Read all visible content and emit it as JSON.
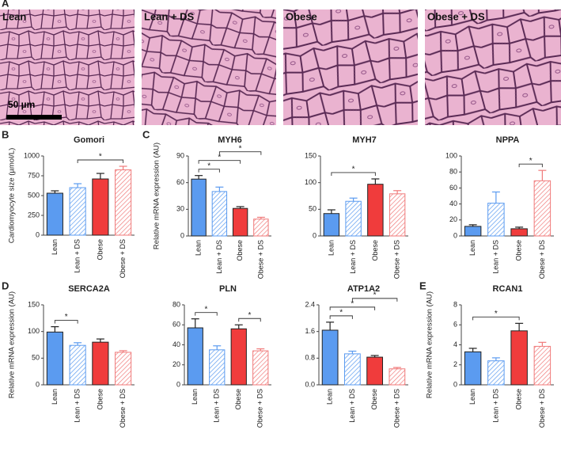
{
  "panel_letters": [
    "A",
    "B",
    "C",
    "D",
    "E"
  ],
  "histology": {
    "labels": [
      "Lean",
      "Lean + DS",
      "Obese",
      "Obese + DS"
    ],
    "scale_bar": "50 µm"
  },
  "chart_data": [
    {
      "type": "bar",
      "title": "Gomori",
      "y_label": "Cardiomyocyte size (µmol/L)",
      "categories": [
        "Lean",
        "Lean + DS",
        "Obese",
        "Obese + DS"
      ],
      "values": [
        530,
        600,
        710,
        825
      ],
      "errors": [
        30,
        50,
        70,
        45
      ],
      "colors": [
        "#5b9bf0",
        "#5b9bf0",
        "#f03c3c",
        "#f07a7a"
      ],
      "hatched": [
        false,
        true,
        false,
        true
      ],
      "ylim": [
        0,
        1000
      ],
      "yticks": [
        0,
        250,
        500,
        750,
        1000
      ],
      "significance": [
        {
          "pair": [
            1,
            3
          ],
          "label": "*"
        }
      ]
    },
    {
      "type": "bar",
      "title": "MYH6",
      "y_label": "Relative mRNA expression (AU)",
      "categories": [
        "Lean",
        "Lean + DS",
        "Obese",
        "Obese + DS"
      ],
      "values": [
        64,
        50,
        31,
        19
      ],
      "errors": [
        4,
        5,
        2,
        2
      ],
      "colors": [
        "#5b9bf0",
        "#5b9bf0",
        "#f03c3c",
        "#f07a7a"
      ],
      "hatched": [
        false,
        true,
        false,
        true
      ],
      "ylim": [
        0,
        90
      ],
      "yticks": [
        0,
        30,
        60,
        90
      ],
      "significance": [
        {
          "pair": [
            0,
            1
          ],
          "label": "*"
        },
        {
          "pair": [
            0,
            2
          ],
          "label": "*"
        },
        {
          "pair": [
            1,
            3
          ],
          "label": "*"
        }
      ]
    },
    {
      "type": "bar",
      "title": "MYH7",
      "categories": [
        "Lean",
        "Lean + DS",
        "Obese",
        "Obese + DS"
      ],
      "values": [
        42,
        65,
        97,
        79
      ],
      "errors": [
        7,
        6,
        10,
        6
      ],
      "colors": [
        "#5b9bf0",
        "#5b9bf0",
        "#f03c3c",
        "#f07a7a"
      ],
      "hatched": [
        false,
        true,
        false,
        true
      ],
      "ylim": [
        0,
        150
      ],
      "yticks": [
        0,
        50,
        100,
        150
      ],
      "significance": [
        {
          "pair": [
            0,
            2
          ],
          "label": "*"
        }
      ]
    },
    {
      "type": "bar",
      "title": "NPPA",
      "categories": [
        "Lean",
        "Lean + DS",
        "Obese",
        "Obese + DS"
      ],
      "values": [
        12,
        41,
        9,
        69
      ],
      "errors": [
        2,
        14,
        2,
        13
      ],
      "colors": [
        "#5b9bf0",
        "#5b9bf0",
        "#f03c3c",
        "#f07a7a"
      ],
      "hatched": [
        false,
        true,
        false,
        true
      ],
      "ylim": [
        0,
        100
      ],
      "yticks": [
        0,
        20,
        40,
        60,
        80,
        100
      ],
      "significance": [
        {
          "pair": [
            2,
            3
          ],
          "label": "*"
        }
      ]
    },
    {
      "type": "bar",
      "title": "SERCA2A",
      "y_label": "Relative mRNA expression (AU)",
      "categories": [
        "Lean",
        "Lean + DS",
        "Obese",
        "Obese + DS"
      ],
      "values": [
        99,
        74,
        80,
        61
      ],
      "errors": [
        10,
        5,
        6,
        3
      ],
      "colors": [
        "#5b9bf0",
        "#5b9bf0",
        "#f03c3c",
        "#f07a7a"
      ],
      "hatched": [
        false,
        true,
        false,
        true
      ],
      "ylim": [
        0,
        150
      ],
      "yticks": [
        0,
        50,
        100,
        150
      ],
      "significance": [
        {
          "pair": [
            0,
            1
          ],
          "label": "*"
        }
      ]
    },
    {
      "type": "bar",
      "title": "PLN",
      "categories": [
        "Lean",
        "Lean + DS",
        "Obese",
        "Obese + DS"
      ],
      "values": [
        57,
        35,
        56,
        34
      ],
      "errors": [
        9,
        4,
        4,
        2
      ],
      "colors": [
        "#5b9bf0",
        "#5b9bf0",
        "#f03c3c",
        "#f07a7a"
      ],
      "hatched": [
        false,
        true,
        false,
        true
      ],
      "ylim": [
        0,
        80
      ],
      "yticks": [
        0,
        20,
        40,
        60,
        80
      ],
      "significance": [
        {
          "pair": [
            0,
            1
          ],
          "label": "*"
        },
        {
          "pair": [
            2,
            3
          ],
          "label": "*"
        }
      ]
    },
    {
      "type": "bar",
      "title": "ATP1A2",
      "categories": [
        "Lean",
        "Lean + DS",
        "Obese",
        "Obese + DS"
      ],
      "values": [
        1.64,
        0.93,
        0.83,
        0.48
      ],
      "errors": [
        0.24,
        0.08,
        0.05,
        0.04
      ],
      "colors": [
        "#5b9bf0",
        "#5b9bf0",
        "#f03c3c",
        "#f07a7a"
      ],
      "hatched": [
        false,
        true,
        false,
        true
      ],
      "ylim": [
        0,
        2.4
      ],
      "yticks": [
        {
          "value": 0,
          "label": "0.0"
        },
        0.8,
        1.6,
        2.4
      ],
      "significance": [
        {
          "pair": [
            0,
            1
          ],
          "label": "*"
        },
        {
          "pair": [
            0,
            2
          ],
          "label": "*"
        },
        {
          "pair": [
            1,
            3
          ],
          "label": "*"
        }
      ]
    },
    {
      "type": "bar",
      "title": "RCAN1",
      "y_label": "Relative mRNA expression (AU)",
      "categories": [
        "Lean",
        "Lean + DS",
        "Obese",
        "Obese + DS"
      ],
      "values": [
        3.3,
        2.4,
        5.4,
        3.85
      ],
      "errors": [
        0.35,
        0.3,
        0.75,
        0.4
      ],
      "colors": [
        "#5b9bf0",
        "#5b9bf0",
        "#f03c3c",
        "#f07a7a"
      ],
      "hatched": [
        false,
        true,
        false,
        true
      ],
      "ylim": [
        0,
        8
      ],
      "yticks": [
        0,
        2,
        4,
        6,
        8
      ],
      "significance": [
        {
          "pair": [
            0,
            2
          ],
          "label": "*"
        }
      ]
    }
  ]
}
